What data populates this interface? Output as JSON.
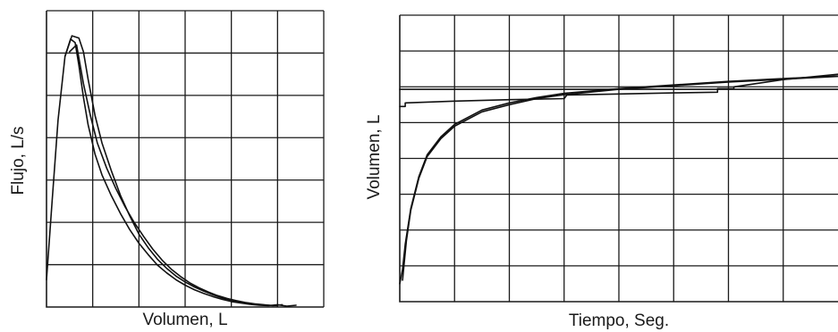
{
  "chart_data": [
    {
      "type": "line",
      "title": "",
      "xlabel": "Volumen, L",
      "ylabel": "Flujo, L/s",
      "grid": true,
      "grid_cols": 6,
      "grid_rows": 7,
      "xlim": [
        0,
        6
      ],
      "ylim": [
        0,
        6.5
      ],
      "tick_labels": false,
      "series": [
        {
          "x": [
            0,
            0.12,
            0.25,
            0.4,
            0.52,
            0.62,
            0.7,
            0.8,
            0.9,
            1.05,
            1.2,
            1.4,
            1.6,
            1.8,
            2.0,
            2.2,
            2.4,
            2.6,
            2.8,
            3.0,
            3.2,
            3.4,
            3.6,
            3.8,
            4.0,
            4.2,
            4.4,
            4.6,
            4.8,
            5.0,
            5.2,
            5.4
          ],
          "y": [
            0.6,
            2.3,
            4.1,
            5.5,
            5.88,
            5.8,
            5.3,
            4.6,
            4.0,
            3.35,
            2.9,
            2.45,
            2.05,
            1.7,
            1.4,
            1.15,
            0.92,
            0.75,
            0.6,
            0.48,
            0.38,
            0.3,
            0.23,
            0.17,
            0.12,
            0.09,
            0.06,
            0.04,
            0.03,
            0.05,
            0.02,
            0.04
          ]
        },
        {
          "x": [
            0.4,
            0.55,
            0.7,
            0.8,
            0.9,
            1.05,
            1.2,
            1.4,
            1.6,
            1.8,
            2.0,
            2.2,
            2.4,
            2.6,
            2.8,
            3.0,
            3.2,
            3.4,
            3.6,
            3.8,
            4.0,
            4.2,
            4.4,
            4.6,
            4.8,
            5.0
          ],
          "y": [
            5.5,
            5.95,
            5.9,
            5.6,
            5.0,
            4.2,
            3.6,
            3.0,
            2.45,
            2.0,
            1.6,
            1.3,
            1.05,
            0.85,
            0.68,
            0.55,
            0.44,
            0.35,
            0.27,
            0.2,
            0.15,
            0.11,
            0.08,
            0.05,
            0.04,
            0.03
          ]
        },
        {
          "x": [
            0.5,
            0.65,
            0.8,
            0.95,
            1.1,
            1.3,
            1.5,
            1.7,
            1.9,
            2.1,
            2.3,
            2.5,
            2.7,
            2.9,
            3.1,
            3.3,
            3.5,
            3.7,
            3.9,
            4.1,
            4.3,
            4.5,
            4.7,
            4.9,
            5.1
          ],
          "y": [
            5.6,
            5.75,
            4.9,
            4.2,
            3.6,
            3.05,
            2.6,
            2.2,
            1.85,
            1.55,
            1.27,
            1.03,
            0.83,
            0.67,
            0.53,
            0.42,
            0.33,
            0.25,
            0.19,
            0.14,
            0.1,
            0.07,
            0.05,
            0.03,
            0.05
          ]
        }
      ]
    },
    {
      "type": "line",
      "title": "",
      "xlabel": "Tiempo, Seg.",
      "ylabel": "Volumen, L",
      "grid": true,
      "grid_cols": 8,
      "grid_rows": 8,
      "xlim": [
        0,
        8
      ],
      "ylim": [
        0,
        8
      ],
      "tick_labels": false,
      "series": [
        {
          "x": [
            0,
            0.05,
            0.1,
            0.2,
            0.35,
            0.5,
            0.75,
            1.0,
            1.5,
            2.0,
            2.5,
            3.0,
            4.0,
            5.0,
            6.0,
            7.0,
            8.0
          ],
          "y": [
            0.5,
            0.9,
            1.6,
            2.6,
            3.5,
            4.1,
            4.6,
            4.95,
            5.35,
            5.55,
            5.7,
            5.82,
            5.95,
            6.05,
            6.15,
            6.23,
            6.3
          ]
        },
        {
          "x": [
            0.05,
            0.12,
            0.2,
            0.35,
            0.5,
            0.75,
            1.0,
            1.5,
            2.0,
            2.5,
            3.0,
            4.0,
            5.0,
            6.0,
            7.0,
            8.0
          ],
          "y": [
            0.6,
            1.7,
            2.55,
            3.45,
            4.05,
            4.55,
            4.9,
            5.3,
            5.5,
            5.67,
            5.78,
            5.93,
            6.03,
            6.13,
            6.21,
            6.29
          ]
        },
        {
          "x": [
            0,
            0.1,
            0.1,
            1.0,
            2.0,
            3.0,
            3.05,
            4.0,
            5.0,
            5.8,
            5.8,
            6.1,
            6.1,
            7.0,
            8.0
          ],
          "y": [
            5.45,
            5.45,
            5.55,
            5.6,
            5.64,
            5.67,
            5.77,
            5.8,
            5.83,
            5.85,
            5.95,
            5.95,
            6.0,
            6.2,
            6.35
          ]
        },
        {
          "x": [
            0,
            8
          ],
          "y": [
            5.93,
            5.93
          ]
        }
      ]
    }
  ]
}
